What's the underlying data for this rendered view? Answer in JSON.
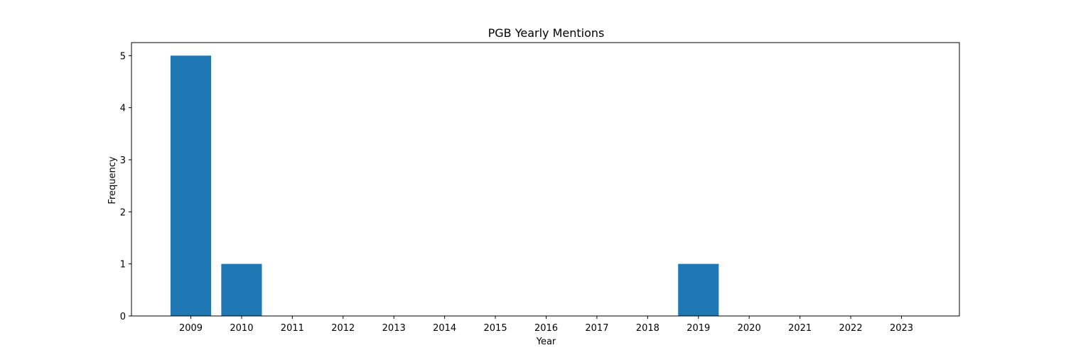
{
  "chart_data": {
    "type": "bar",
    "title": "PGB Yearly Mentions",
    "xlabel": "Year",
    "ylabel": "Frequency",
    "categories": [
      "2009",
      "2010",
      "2011",
      "2012",
      "2013",
      "2014",
      "2015",
      "2016",
      "2017",
      "2018",
      "2019",
      "2020",
      "2021",
      "2022",
      "2023"
    ],
    "values": [
      5,
      1,
      0,
      0,
      0,
      0,
      0,
      0,
      0,
      0,
      1,
      0,
      0,
      0,
      0
    ],
    "ylim": [
      0,
      5.25
    ],
    "yticks": [
      0,
      1,
      2,
      3,
      4,
      5
    ],
    "bar_color": "#1f77b4",
    "grid": false,
    "legend": "none"
  }
}
